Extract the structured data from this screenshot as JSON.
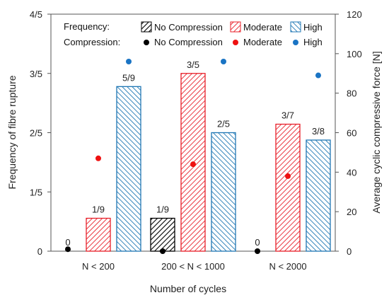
{
  "chart_data": {
    "type": "bar",
    "xlabel": "Number of cycles",
    "ylabel_left": "Frequency of fibre rupture",
    "ylabel_right": "Average cyclic compressive force [N]",
    "categories": [
      "N < 200",
      "200 < N < 1000",
      "N < 2000"
    ],
    "y_left": {
      "min": 0,
      "max": 0.8,
      "ticks": [
        0,
        0.2,
        0.4,
        0.6,
        0.8
      ],
      "tick_labels": [
        "0",
        "1/5",
        "2/5",
        "3/5",
        "4/5"
      ]
    },
    "y_right": {
      "min": 0,
      "max": 120,
      "ticks": [
        0,
        20,
        40,
        60,
        80,
        100,
        120
      ],
      "tick_labels": [
        "0",
        "20",
        "40",
        "60",
        "80",
        "100",
        "120"
      ]
    },
    "legend": {
      "frequency_title": "Frequency:",
      "compression_title": "Compression:"
    },
    "bar_series": [
      {
        "name": "No Compression",
        "color": "#000000",
        "values": [
          0,
          0.1111,
          0
        ],
        "labels": [
          "0",
          "1/9",
          "0"
        ]
      },
      {
        "name": "Moderate",
        "color": "#e8202a",
        "values": [
          0.1111,
          0.6,
          0.4286
        ],
        "labels": [
          "1/9",
          "3/5",
          "3/7"
        ]
      },
      {
        "name": "High",
        "color": "#1f77b4",
        "values": [
          0.5556,
          0.4,
          0.375
        ],
        "labels": [
          "5/9",
          "2/5",
          "3/8"
        ]
      }
    ],
    "scatter_series": [
      {
        "name": "No Compression",
        "color": "#000000",
        "values": [
          1,
          0,
          0
        ]
      },
      {
        "name": "Moderate",
        "color": "#ee1111",
        "values": [
          47,
          44,
          38
        ]
      },
      {
        "name": "High",
        "color": "#1a74c4",
        "values": [
          96,
          96,
          89
        ]
      }
    ],
    "grid": false
  }
}
